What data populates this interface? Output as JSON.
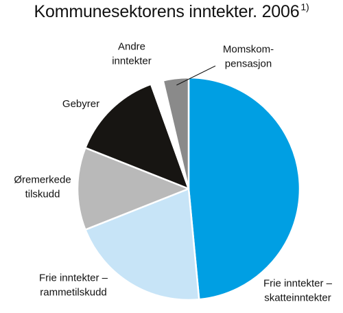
{
  "title": "Kommunesektorens inntekter. 2006",
  "title_footnote": "1)",
  "chart_data": {
    "type": "pie",
    "title": "Kommunesektorens inntekter. 2006",
    "slices": [
      {
        "name": "Frie inntekter – skatteinntekter",
        "lines": [
          "Frie inntekter –",
          "skatteinntekter"
        ],
        "value": 48.5,
        "color": "#009fe3"
      },
      {
        "name": "Frie inntekter – rammetilskudd",
        "lines": [
          "Frie inntekter –",
          "rammetilskudd"
        ],
        "value": 20.5,
        "color": "#c7e4f7"
      },
      {
        "name": "Øremerkede tilskudd",
        "lines": [
          "Øremerkede",
          "tilskudd"
        ],
        "value": 12.0,
        "color": "#b9b9b9"
      },
      {
        "name": "Gebyrer",
        "lines": [
          "Gebyrer"
        ],
        "value": 13.5,
        "color": "#171512"
      },
      {
        "name": "Andre inntekter",
        "lines": [
          "Andre",
          "inntekter"
        ],
        "value": 1.8,
        "color": "#ffffff"
      },
      {
        "name": "Momskompensasjon",
        "lines": [
          "Momskom-",
          "pensasjon"
        ],
        "value": 3.7,
        "color": "#8a8a8a"
      }
    ],
    "start_angle_deg": 0,
    "direction": "clockwise",
    "legend": "none"
  }
}
